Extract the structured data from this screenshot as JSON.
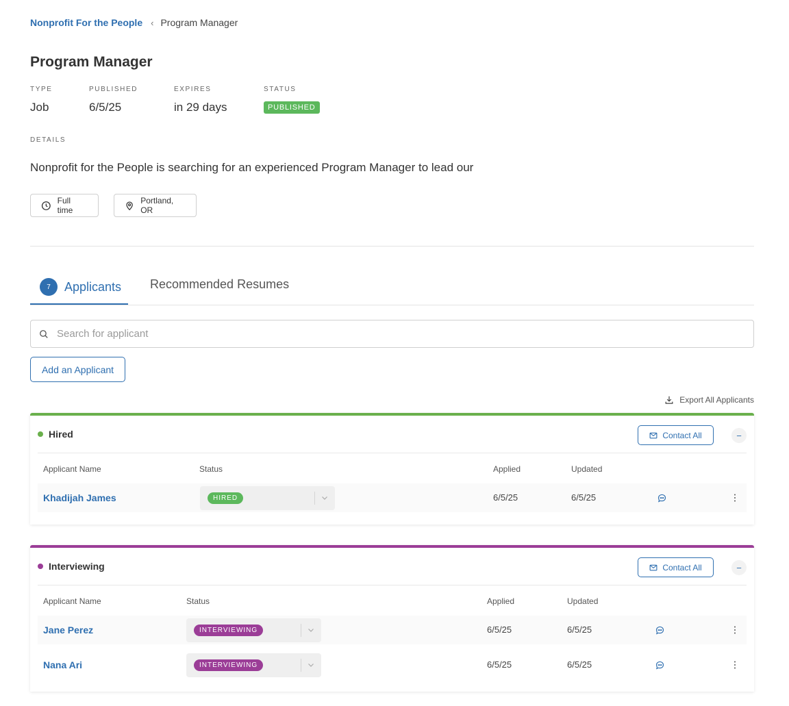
{
  "breadcrumb": {
    "parent": "Nonprofit For the People",
    "separator": "‹",
    "current": "Program Manager"
  },
  "page": {
    "title": "Program Manager"
  },
  "meta": {
    "type": {
      "label": "TYPE",
      "value": "Job"
    },
    "published": {
      "label": "PUBLISHED",
      "value": "6/5/25"
    },
    "expires": {
      "label": "EXPIRES",
      "value": "in 29 days"
    },
    "status": {
      "label": "STATUS",
      "value": "PUBLISHED"
    }
  },
  "details": {
    "label": "DETAILS",
    "text": "Nonprofit for the People is searching for an experienced Program Manager to lead our"
  },
  "chips": {
    "employment": {
      "label": "Full time",
      "icon": "clock-icon"
    },
    "location": {
      "label": "Portland, OR",
      "icon": "location-pin-icon"
    }
  },
  "tabs": {
    "applicants": {
      "label": "Applicants",
      "count": "7"
    },
    "resumes": {
      "label": "Recommended Resumes"
    }
  },
  "search": {
    "placeholder": "Search for applicant",
    "value": ""
  },
  "actions": {
    "add_applicant": "Add an Applicant",
    "export_all": "Export All Applicants"
  },
  "colors": {
    "accent": "#2f6fb0",
    "hired": "#6ab04c",
    "interviewing": "#9b3d97",
    "published": "#5cb85c"
  },
  "groups": {
    "hired": {
      "title": "Hired",
      "contact_label": "Contact All",
      "collapse_symbol": "−",
      "columns": {
        "name": "Applicant Name",
        "status": "Status",
        "applied": "Applied",
        "updated": "Updated"
      },
      "rows": [
        {
          "name": "Khadijah James",
          "status": "HIRED",
          "applied": "6/5/25",
          "updated": "6/5/25"
        }
      ]
    },
    "interviewing": {
      "title": "Interviewing",
      "contact_label": "Contact All",
      "collapse_symbol": "−",
      "columns": {
        "name": "Applicant Name",
        "status": "Status",
        "applied": "Applied",
        "updated": "Updated"
      },
      "rows": [
        {
          "name": "Jane Perez",
          "status": "INTERVIEWING",
          "applied": "6/5/25",
          "updated": "6/5/25"
        },
        {
          "name": "Nana Ari",
          "status": "INTERVIEWING",
          "applied": "6/5/25",
          "updated": "6/5/25"
        }
      ]
    }
  }
}
